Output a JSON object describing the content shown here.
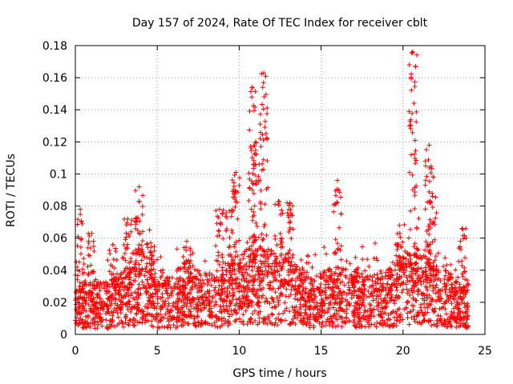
{
  "chart_data": {
    "type": "scatter",
    "title": "Day 157 of 2024, Rate Of TEC Index for receiver cblt",
    "xlabel": "GPS time / hours",
    "ylabel": "ROTI / TECUs",
    "xlim": [
      0,
      25
    ],
    "ylim": [
      0,
      0.18
    ],
    "xticks": [
      0,
      5,
      10,
      15,
      20,
      25
    ],
    "xtick_labels": [
      "0",
      "5",
      "10",
      "15",
      "20",
      "25"
    ],
    "yticks": [
      0,
      0.02,
      0.04,
      0.06,
      0.08,
      0.1,
      0.12,
      0.14,
      0.16,
      0.18
    ],
    "ytick_labels": [
      "0",
      "0.02",
      "0.04",
      "0.06",
      "0.08",
      "0.1",
      "0.12",
      "0.14",
      "0.16",
      "0.18"
    ],
    "grid": true,
    "marker": "+",
    "marker_color": "#ff0000",
    "series": [
      {
        "name": "ROTI",
        "color": "#ff0000",
        "baseline": [
          [
            0,
            0.018
          ],
          [
            2,
            0.018
          ],
          [
            3.5,
            0.025
          ],
          [
            4,
            0.032
          ],
          [
            5,
            0.02
          ],
          [
            6.5,
            0.02
          ],
          [
            7,
            0.024
          ],
          [
            8.5,
            0.02
          ],
          [
            9.5,
            0.025
          ],
          [
            10.5,
            0.03
          ],
          [
            11.5,
            0.03
          ],
          [
            13,
            0.028
          ],
          [
            14.5,
            0.02
          ],
          [
            16,
            0.024
          ],
          [
            17.5,
            0.02
          ],
          [
            19,
            0.022
          ],
          [
            20,
            0.028
          ],
          [
            21,
            0.03
          ],
          [
            22,
            0.024
          ],
          [
            24,
            0.018
          ]
        ],
        "peaks": [
          {
            "x": 0.3,
            "y": 0.078
          },
          {
            "x": 1.0,
            "y": 0.063
          },
          {
            "x": 2.3,
            "y": 0.056
          },
          {
            "x": 3.2,
            "y": 0.072
          },
          {
            "x": 3.9,
            "y": 0.092
          },
          {
            "x": 4.6,
            "y": 0.057
          },
          {
            "x": 6.8,
            "y": 0.058
          },
          {
            "x": 8.8,
            "y": 0.078
          },
          {
            "x": 9.4,
            "y": 0.077
          },
          {
            "x": 9.8,
            "y": 0.101
          },
          {
            "x": 10.8,
            "y": 0.154
          },
          {
            "x": 11.0,
            "y": 0.12
          },
          {
            "x": 11.5,
            "y": 0.163
          },
          {
            "x": 12.4,
            "y": 0.083
          },
          {
            "x": 13.1,
            "y": 0.082
          },
          {
            "x": 16.0,
            "y": 0.096
          },
          {
            "x": 17.1,
            "y": 0.048
          },
          {
            "x": 19.8,
            "y": 0.063
          },
          {
            "x": 20.6,
            "y": 0.176
          },
          {
            "x": 21.6,
            "y": 0.118
          },
          {
            "x": 21.8,
            "y": 0.086
          },
          {
            "x": 23.6,
            "y": 0.066
          }
        ]
      }
    ]
  }
}
